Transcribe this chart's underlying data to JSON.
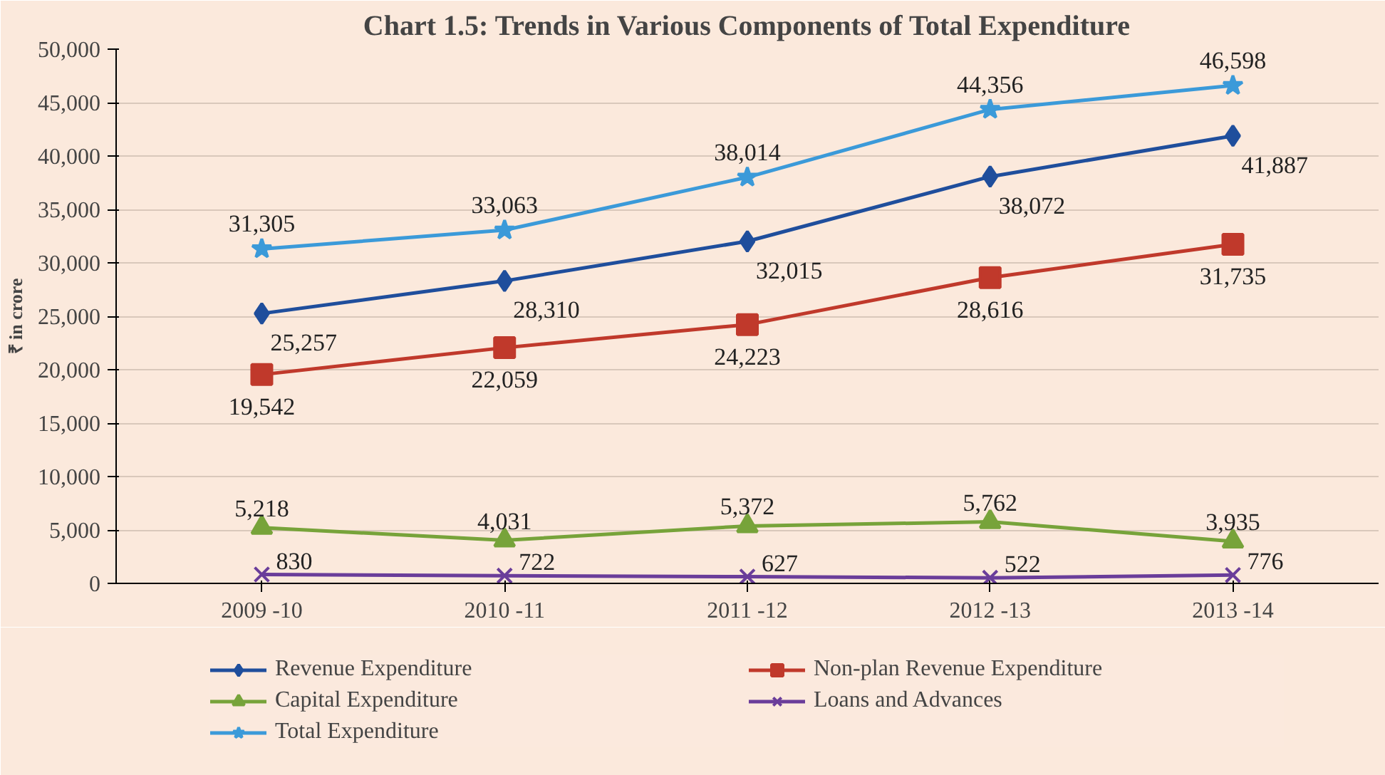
{
  "chart_data": {
    "type": "line",
    "title": "Chart 1.5: Trends in Various Components of Total Expenditure",
    "ylabel": "₹ in crore",
    "categories": [
      "2009 -10",
      "2010 -11",
      "2011 -12",
      "2012 -13",
      "2013 -14"
    ],
    "series": [
      {
        "name": "Revenue Expenditure",
        "color": "#1f4e9c",
        "marker": "diamond",
        "values": [
          25257,
          28310,
          32015,
          38072,
          41887
        ],
        "value_labels": [
          "25,257",
          "28,310",
          "32,015",
          "38,072",
          "41,887"
        ]
      },
      {
        "name": "Non-plan Revenue Expenditure",
        "color": "#c0392b",
        "marker": "square",
        "values": [
          19542,
          22059,
          24223,
          28616,
          31735
        ],
        "value_labels": [
          "19,542",
          "22,059",
          "24,223",
          "28,616",
          "31,735"
        ]
      },
      {
        "name": "Capital Expenditure",
        "color": "#77a33a",
        "marker": "triangle",
        "values": [
          5218,
          4031,
          5372,
          5762,
          3935
        ],
        "value_labels": [
          "5,218",
          "4,031",
          "5,372",
          "5,762",
          "3,935"
        ]
      },
      {
        "name": "Loans and Advances",
        "color": "#6a3d9a",
        "marker": "cross",
        "values": [
          830,
          722,
          627,
          522,
          776
        ],
        "value_labels": [
          "830",
          "722",
          "627",
          "522",
          "776"
        ]
      },
      {
        "name": "Total Expenditure",
        "color": "#3b9ad9",
        "marker": "star",
        "values": [
          31305,
          33063,
          38014,
          44356,
          46598
        ],
        "value_labels": [
          "31,305",
          "33,063",
          "38,014",
          "44,356",
          "46,598"
        ]
      }
    ],
    "ylim": [
      0,
      50000
    ],
    "yticks": [
      {
        "value": 0,
        "label": "0"
      },
      {
        "value": 5000,
        "label": "5,000"
      },
      {
        "value": 10000,
        "label": "10,000"
      },
      {
        "value": 15000,
        "label": "15,000"
      },
      {
        "value": 20000,
        "label": "20,000"
      },
      {
        "value": 25000,
        "label": "25,000"
      },
      {
        "value": 30000,
        "label": "30,000"
      },
      {
        "value": 35000,
        "label": "35,000"
      },
      {
        "value": 40000,
        "label": "40,000"
      },
      {
        "value": 45000,
        "label": "45,000"
      },
      {
        "value": 50000,
        "label": "50,000"
      }
    ],
    "grid": "y",
    "legend": "bottom",
    "data_labels": true,
    "line_style": "solid"
  }
}
